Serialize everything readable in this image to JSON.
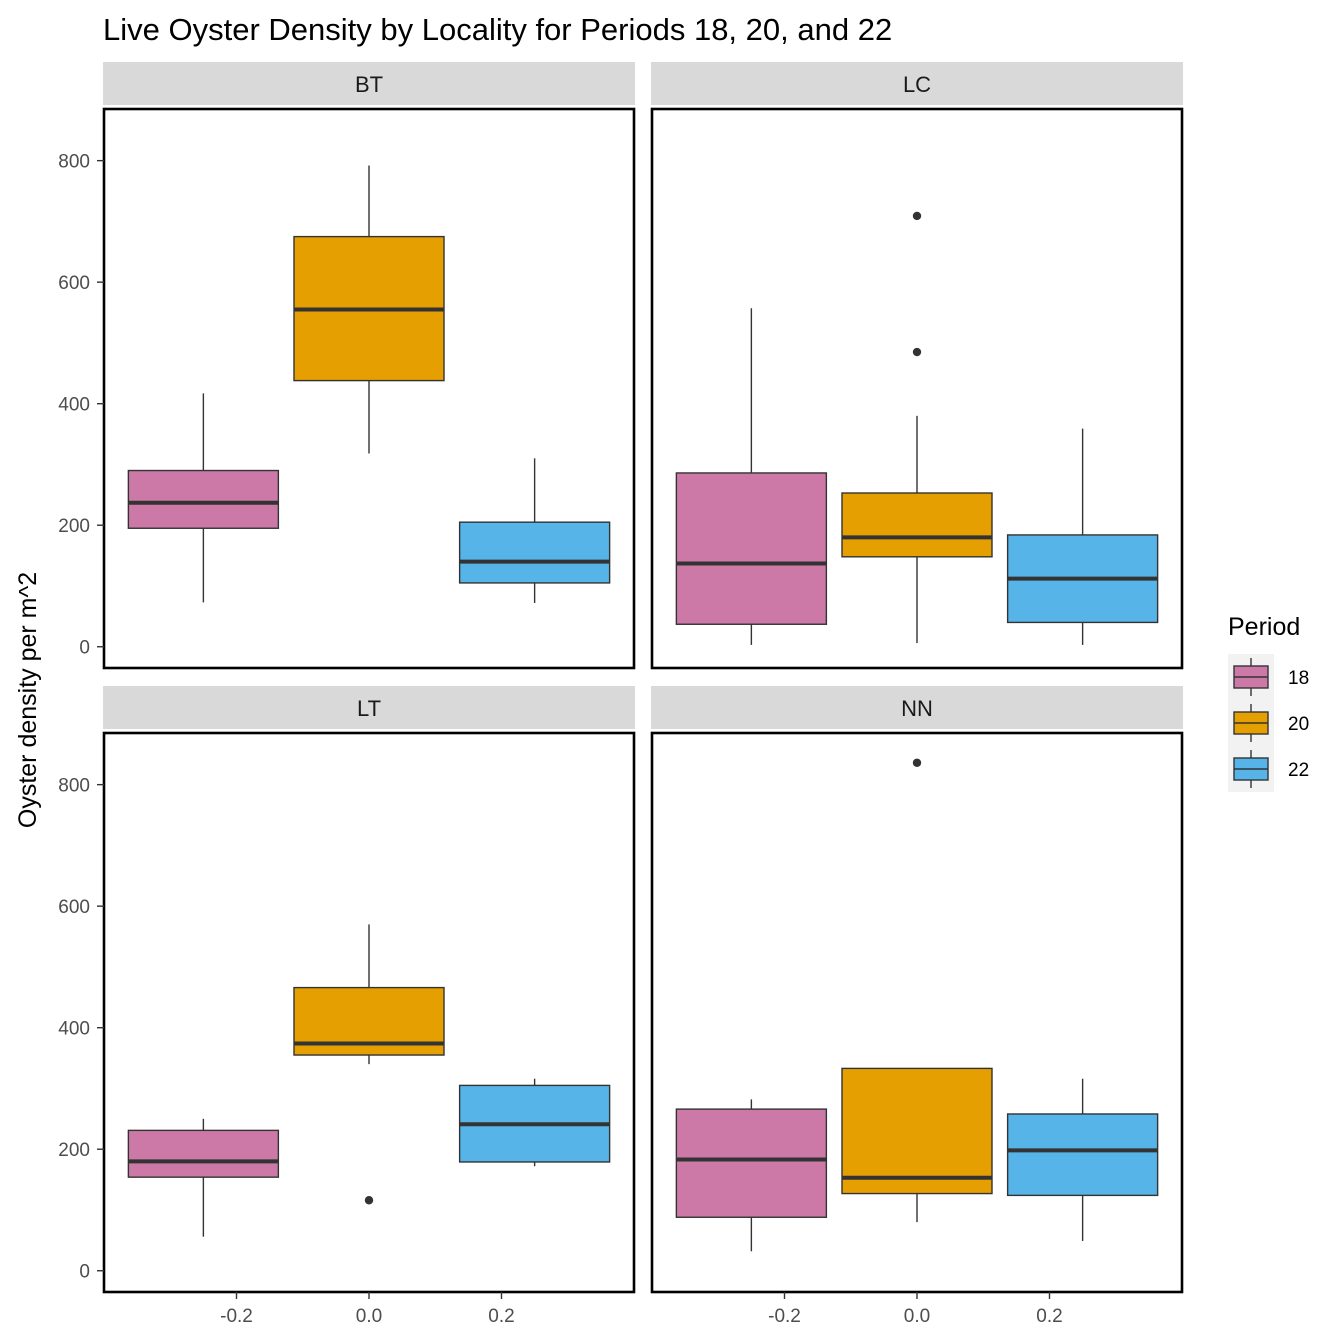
{
  "chart_data": {
    "type": "boxplot",
    "title": "Live Oyster Density by Locality for Periods 18, 20, and 22",
    "xlabel": "",
    "ylabel": "Oyster density per m^2",
    "ylim": [
      -35,
      885
    ],
    "xlim": [
      -0.4,
      0.4
    ],
    "y_ticks": [
      0,
      200,
      400,
      600,
      800
    ],
    "x_ticks": [
      -0.2,
      0.0,
      0.2
    ],
    "x_tick_labels": [
      "-0.2",
      "0.0",
      "0.2"
    ],
    "grid": false,
    "facet_layout": "2x2",
    "legend": {
      "title": "Period",
      "position": "right",
      "entries": [
        {
          "label": "18",
          "color": "#CC79A7"
        },
        {
          "label": "20",
          "color": "#E69F00"
        },
        {
          "label": "22",
          "color": "#56B4E9"
        }
      ]
    },
    "panels": [
      {
        "name": "BT",
        "boxes": [
          {
            "period": "18",
            "x": -0.25,
            "whisker_low": 73,
            "q1": 195,
            "median": 237,
            "q3": 290,
            "whisker_high": 417,
            "outliers": []
          },
          {
            "period": "20",
            "x": 0.0,
            "whisker_low": 318,
            "q1": 438,
            "median": 555,
            "q3": 675,
            "whisker_high": 792,
            "outliers": []
          },
          {
            "period": "22",
            "x": 0.25,
            "whisker_low": 72,
            "q1": 105,
            "median": 140,
            "q3": 205,
            "whisker_high": 310,
            "outliers": []
          }
        ]
      },
      {
        "name": "LC",
        "boxes": [
          {
            "period": "18",
            "x": -0.25,
            "whisker_low": 3,
            "q1": 37,
            "median": 137,
            "q3": 286,
            "whisker_high": 557,
            "outliers": []
          },
          {
            "period": "20",
            "x": 0.0,
            "whisker_low": 6,
            "q1": 148,
            "median": 180,
            "q3": 253,
            "whisker_high": 380,
            "outliers": [
              485,
              709
            ]
          },
          {
            "period": "22",
            "x": 0.25,
            "whisker_low": 3,
            "q1": 40,
            "median": 112,
            "q3": 184,
            "whisker_high": 359,
            "outliers": []
          }
        ]
      },
      {
        "name": "LT",
        "boxes": [
          {
            "period": "18",
            "x": -0.25,
            "whisker_low": 56,
            "q1": 154,
            "median": 180,
            "q3": 231,
            "whisker_high": 250,
            "outliers": []
          },
          {
            "period": "20",
            "x": 0.0,
            "whisker_low": 340,
            "q1": 355,
            "median": 374,
            "q3": 466,
            "whisker_high": 570,
            "outliers": [
              116
            ]
          },
          {
            "period": "22",
            "x": 0.25,
            "whisker_low": 172,
            "q1": 179,
            "median": 241,
            "q3": 305,
            "whisker_high": 316,
            "outliers": []
          }
        ]
      },
      {
        "name": "NN",
        "boxes": [
          {
            "period": "18",
            "x": -0.25,
            "whisker_low": 32,
            "q1": 88,
            "median": 183,
            "q3": 266,
            "whisker_high": 282,
            "outliers": []
          },
          {
            "period": "20",
            "x": 0.0,
            "whisker_low": 80,
            "q1": 127,
            "median": 153,
            "q3": 333,
            "whisker_high": 333,
            "outliers": [
              836
            ]
          },
          {
            "period": "22",
            "x": 0.25,
            "whisker_low": 49,
            "q1": 124,
            "median": 198,
            "q3": 258,
            "whisker_high": 316,
            "outliers": []
          }
        ]
      }
    ]
  }
}
